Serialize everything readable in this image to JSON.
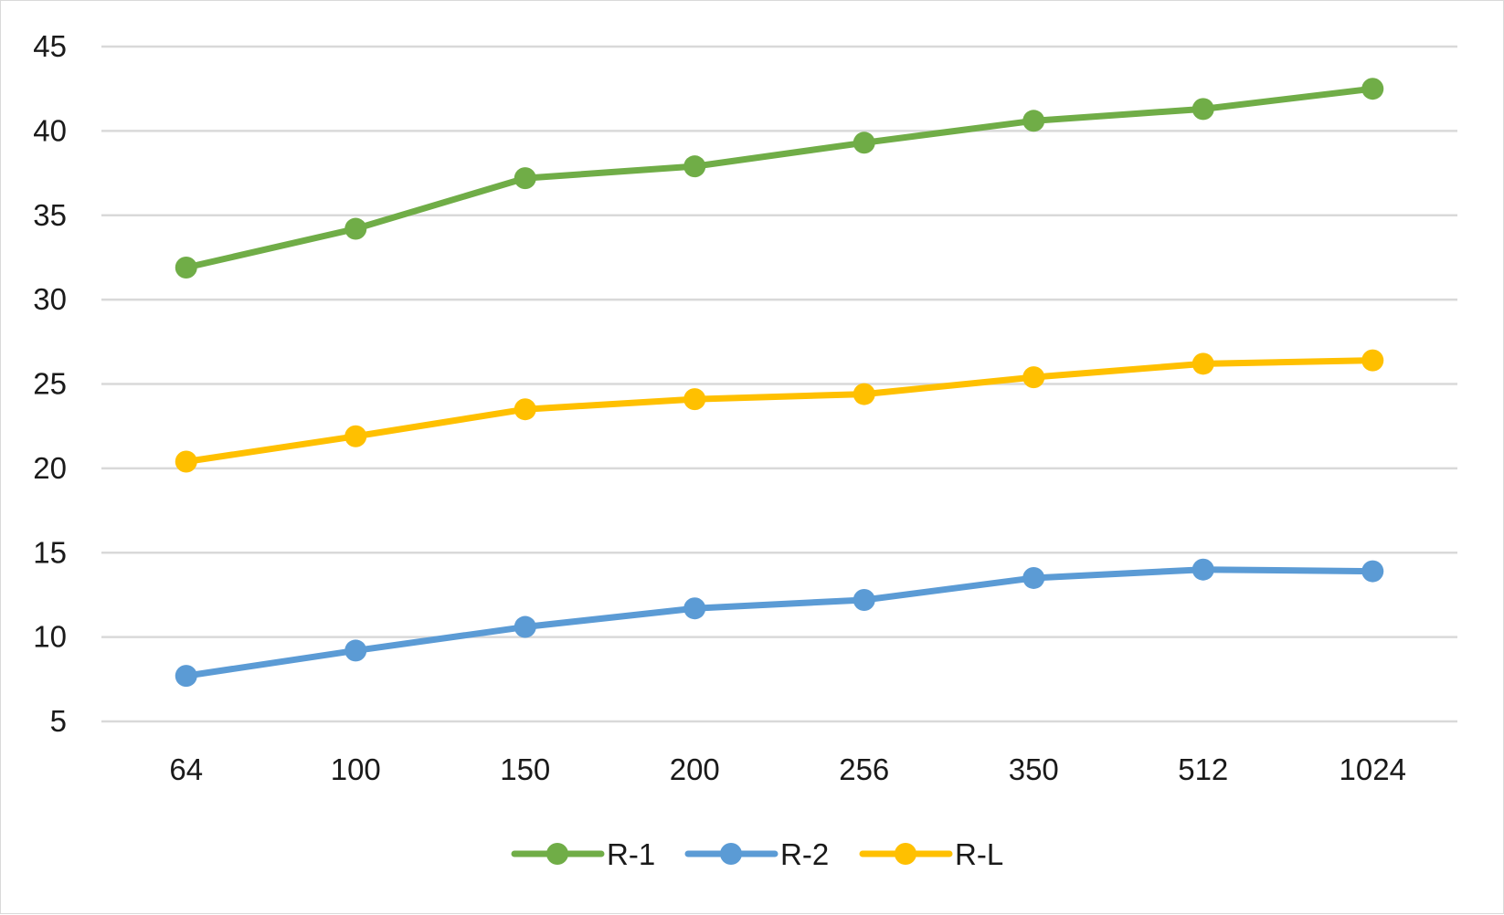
{
  "chart_data": {
    "type": "line",
    "title": "",
    "xlabel": "",
    "ylabel": "",
    "categories": [
      "64",
      "100",
      "150",
      "200",
      "256",
      "350",
      "512",
      "1024"
    ],
    "ylim": [
      5,
      45
    ],
    "yticks": [
      5,
      10,
      15,
      20,
      25,
      30,
      35,
      40,
      45
    ],
    "grid": "horizontal",
    "legend": "bottom",
    "series": [
      {
        "name": "R-1",
        "color": "#70ad47",
        "values": [
          31.9,
          34.2,
          37.2,
          37.9,
          39.3,
          40.6,
          41.3,
          42.5
        ]
      },
      {
        "name": "R-2",
        "color": "#5b9bd5",
        "values": [
          7.7,
          9.2,
          10.6,
          11.7,
          12.2,
          13.5,
          14.0,
          13.9
        ]
      },
      {
        "name": "R-L",
        "color": "#ffc000",
        "values": [
          20.4,
          21.9,
          23.5,
          24.1,
          24.4,
          25.4,
          26.2,
          26.4
        ]
      }
    ]
  }
}
